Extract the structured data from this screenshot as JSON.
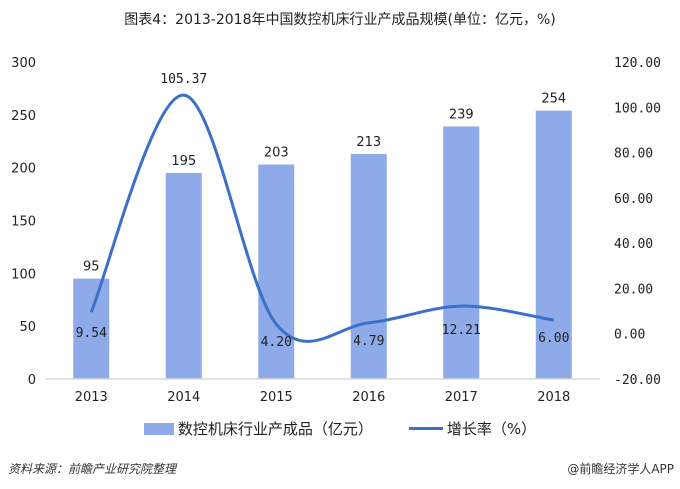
{
  "title": "图表4：2013-2018年中国数控机床行业产成品规模(单位：亿元，%)",
  "chart_data": {
    "type": "bar+line",
    "categories": [
      "2013",
      "2014",
      "2015",
      "2016",
      "2017",
      "2018"
    ],
    "series": [
      {
        "name": "数控机床行业产成品（亿元）",
        "type": "bar",
        "axis": "left",
        "values": [
          95,
          195,
          203,
          213,
          239,
          254
        ],
        "labels": [
          "95",
          "195",
          "203",
          "213",
          "239",
          "254"
        ]
      },
      {
        "name": "增长率（%）",
        "type": "line",
        "axis": "right",
        "values": [
          9.54,
          105.37,
          4.2,
          4.79,
          12.21,
          6.0
        ],
        "labels": [
          "9.54",
          "105.37",
          "4.20",
          "4.79",
          "12.21",
          "6.00"
        ]
      }
    ],
    "left_ylim": [
      0,
      300
    ],
    "left_ticks": [
      "0",
      "50",
      "100",
      "150",
      "200",
      "250",
      "300"
    ],
    "right_ylim": [
      -20,
      120
    ],
    "right_ticks": [
      "-20.00",
      "0.00",
      "20.00",
      "40.00",
      "60.00",
      "80.00",
      "100.00",
      "120.00"
    ],
    "grid": false,
    "legend": "bottom",
    "colors": {
      "bar": "#8eaae8",
      "line": "#3b6fc8"
    }
  },
  "source": "资料来源：前瞻产业研究院整理",
  "credit": "@前瞻经济学人APP"
}
